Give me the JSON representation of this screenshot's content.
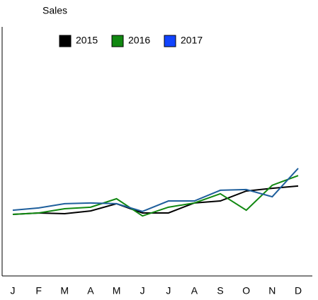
{
  "chart_data": {
    "type": "line",
    "title": "Sales",
    "categories": [
      "J",
      "F",
      "M",
      "A",
      "M",
      "J",
      "J",
      "A",
      "S",
      "O",
      "N",
      "D"
    ],
    "series": [
      {
        "name": "2015",
        "color": "#000000",
        "legend_color": "#000000",
        "values": [
          24.7,
          25.3,
          25.0,
          26.1,
          29.0,
          25.3,
          25.3,
          29.3,
          30.1,
          34.1,
          35.2,
          36.1
        ]
      },
      {
        "name": "2016",
        "color": "#118811",
        "legend_color": "#118811",
        "values": [
          24.7,
          25.3,
          27.0,
          27.6,
          31.0,
          24.1,
          27.6,
          29.3,
          33.0,
          26.4,
          36.4,
          40.3
        ]
      },
      {
        "name": "2017",
        "color": "#1f5f9c",
        "legend_color": "#1144ff",
        "values": [
          26.4,
          27.3,
          29.0,
          29.3,
          29.0,
          25.9,
          30.1,
          30.1,
          34.4,
          34.7,
          31.8,
          43.2
        ]
      }
    ],
    "ylim": [
      0,
      100
    ],
    "legend": "top"
  }
}
